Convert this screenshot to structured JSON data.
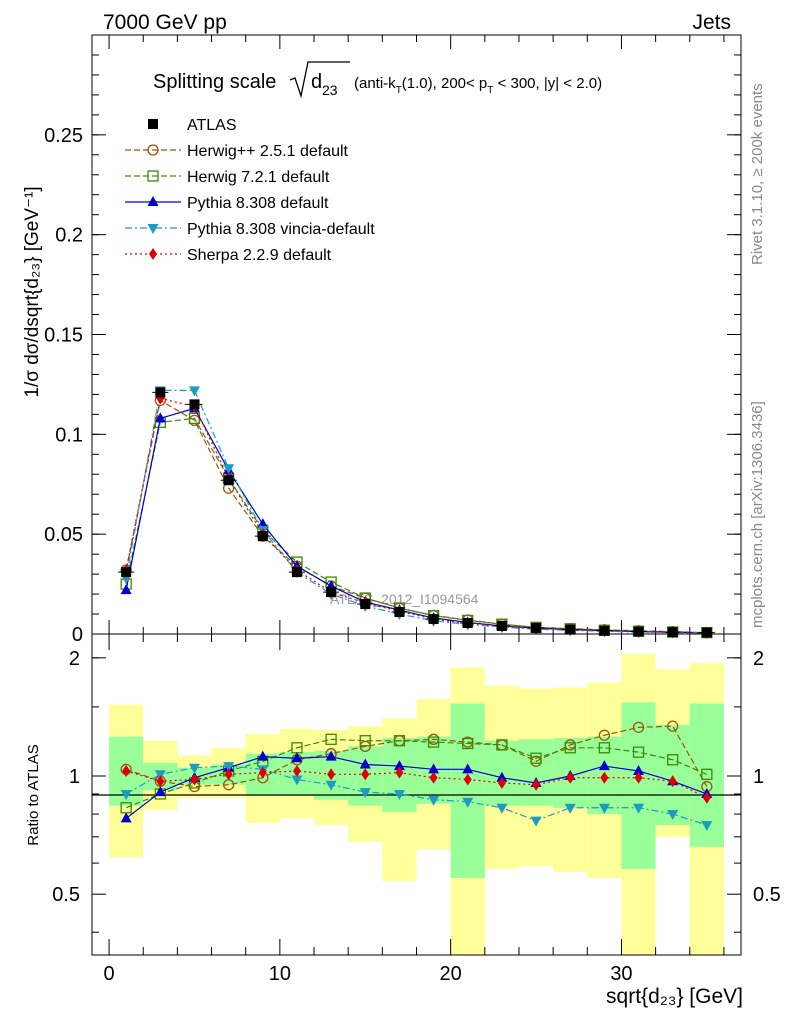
{
  "header": {
    "left": "7000 GeV pp",
    "right": "Jets"
  },
  "side_labels": {
    "rivet": "Rivet 3.1.10, ≥ 200k events",
    "mcplots": "mcplots.cern.ch [arXiv:1306.3436]"
  },
  "watermark": "ATLAS_2012_I1094564",
  "title": {
    "prefix": "Splitting scale",
    "sub": "23",
    "var": "d",
    "suffix_parts": [
      "(anti-k",
      "T",
      "(1.0), 200< p",
      "T",
      " < 300, |y| < 2.0)"
    ]
  },
  "main_ylabel": "1/σ dσ/dsqrt{d₂₃} [GeV⁻¹]",
  "ratio_ylabel": "Ratio to ATLAS",
  "xlabel": "sqrt{d₂₃} [GeV]",
  "colors": {
    "atlas": "#000000",
    "herwigpp": "#a0520a",
    "herwig7": "#3a8a0a",
    "pythia": "#0000cc",
    "vincia": "#1e9bc3",
    "sherpa": "#e00000",
    "band_yellow": "#ffff99",
    "band_green": "#99ff99"
  },
  "chart_data": [
    {
      "type": "line",
      "panel": "main",
      "title": "Splitting scale sqrt(d23) (anti-kT(1.0), 200< pT < 300, |y| < 2.0)",
      "xlabel": "sqrt{d23} [GeV]",
      "ylabel": "1/σ dσ/dsqrt{d23} [GeV^-1]",
      "xlim": [
        -1,
        37
      ],
      "ylim": [
        0,
        0.3
      ],
      "yticks": [
        0,
        0.05,
        0.1,
        0.15,
        0.2,
        0.25
      ],
      "ytick_labels": [
        "0",
        "0.05",
        "0.1",
        "0.15",
        "0.2",
        "0.25"
      ],
      "legend_position": "top-left",
      "x": [
        1,
        3,
        5,
        7,
        9,
        11,
        13,
        15,
        17,
        19,
        21,
        23,
        25,
        27,
        29,
        31,
        33,
        35
      ],
      "series": [
        {
          "key": "atlas",
          "name": "ATLAS",
          "marker": "square-filled",
          "values": [
            0.031,
            0.121,
            0.115,
            0.077,
            0.049,
            0.031,
            0.021,
            0.015,
            0.011,
            0.0075,
            0.0055,
            0.004,
            0.003,
            0.0022,
            0.0016,
            0.0012,
            0.0009,
            0.0007
          ]
        },
        {
          "key": "herwigpp",
          "name": "Herwig++ 2.5.1 default",
          "marker": "circle-open",
          "dash": "6,3",
          "values": [
            0.032,
            0.117,
            0.107,
            0.073,
            0.049,
            0.034,
            0.024,
            0.018,
            0.013,
            0.0093,
            0.007,
            0.0049,
            0.0033,
            0.0027,
            0.0021,
            0.0016,
            0.0012,
            0.00065
          ]
        },
        {
          "key": "herwig7",
          "name": "Herwig 7.2.1 default",
          "marker": "square-open",
          "dash": "6,3",
          "values": [
            0.025,
            0.106,
            0.108,
            0.078,
            0.052,
            0.036,
            0.026,
            0.018,
            0.013,
            0.0092,
            0.0068,
            0.0049,
            0.0033,
            0.0026,
            0.0019,
            0.0014,
            0.001,
            0.0007
          ]
        },
        {
          "key": "pythia",
          "name": "Pythia 8.308 default",
          "marker": "triangle-up",
          "dash": "",
          "values": [
            0.022,
            0.108,
            0.113,
            0.082,
            0.055,
            0.034,
            0.024,
            0.016,
            0.012,
            0.008,
            0.0058,
            0.004,
            0.0029,
            0.0022,
            0.0017,
            0.0012,
            0.0009,
            0.00064
          ]
        },
        {
          "key": "vincia",
          "name": "Pythia 8.308 vincia-default",
          "marker": "triangle-down",
          "dash": "7,3,2,3",
          "values": [
            0.028,
            0.122,
            0.122,
            0.083,
            0.052,
            0.031,
            0.02,
            0.014,
            0.01,
            0.0066,
            0.0048,
            0.0035,
            0.0024,
            0.0018,
            0.0014,
            0.001,
            0.00072,
            0.00053
          ]
        },
        {
          "key": "sherpa",
          "name": "Sherpa 2.2.9 default",
          "marker": "diamond",
          "dash": "2,3",
          "values": [
            0.032,
            0.118,
            0.114,
            0.078,
            0.05,
            0.032,
            0.021,
            0.0155,
            0.0114,
            0.0074,
            0.0054,
            0.0039,
            0.0029,
            0.0022,
            0.0016,
            0.0012,
            0.00085,
            0.0006
          ]
        }
      ]
    },
    {
      "type": "line",
      "panel": "ratio",
      "ylabel": "Ratio to ATLAS",
      "xlabel": "sqrt{d23} [GeV]",
      "xlim": [
        -1,
        37
      ],
      "ylim": [
        0.35,
        2.3
      ],
      "yticks": [
        0.5,
        1,
        2
      ],
      "ytick_labels": [
        "0.5",
        "1",
        "2"
      ],
      "xticks": [
        0,
        10,
        20,
        30
      ],
      "xtick_labels": [
        "0",
        "10",
        "20",
        "30"
      ],
      "bin_edges": [
        0,
        2,
        4,
        6,
        8,
        10,
        12,
        14,
        16,
        18,
        20,
        22,
        24,
        26,
        28,
        30,
        32,
        34,
        36
      ],
      "band_yellow": {
        "low": [
          0.62,
          0.82,
          0.88,
          0.88,
          0.76,
          0.78,
          0.75,
          0.68,
          0.54,
          0.65,
          0.35,
          0.58,
          0.59,
          0.57,
          0.55,
          0.35,
          0.7,
          0.35
        ],
        "high": [
          1.52,
          1.23,
          1.13,
          1.18,
          1.28,
          1.32,
          1.31,
          1.34,
          1.4,
          1.57,
          1.89,
          1.7,
          1.67,
          1.68,
          1.73,
          2.05,
          1.87,
          1.94
        ]
      },
      "band_green": {
        "low": [
          0.84,
          0.92,
          0.95,
          0.95,
          0.89,
          0.89,
          0.87,
          0.84,
          0.81,
          0.85,
          0.55,
          0.84,
          0.84,
          0.83,
          0.8,
          0.58,
          0.75,
          0.66
        ],
        "high": [
          1.26,
          1.08,
          1.05,
          1.07,
          1.14,
          1.15,
          1.16,
          1.19,
          1.25,
          1.26,
          1.53,
          1.23,
          1.24,
          1.25,
          1.26,
          1.54,
          1.35,
          1.53
        ]
      },
      "series": [
        {
          "key": "herwigpp",
          "values": [
            1.04,
            0.97,
            0.94,
            0.95,
            0.99,
            1.1,
            1.14,
            1.19,
            1.23,
            1.24,
            1.22,
            1.2,
            1.09,
            1.2,
            1.27,
            1.33,
            1.34,
            0.94
          ]
        },
        {
          "key": "herwig7",
          "values": [
            0.83,
            0.9,
            0.96,
            1.03,
            1.09,
            1.18,
            1.24,
            1.23,
            1.23,
            1.22,
            1.21,
            1.2,
            1.11,
            1.18,
            1.18,
            1.15,
            1.1,
            1.01
          ]
        },
        {
          "key": "pythia",
          "values": [
            0.78,
            0.91,
            0.99,
            1.05,
            1.12,
            1.11,
            1.12,
            1.07,
            1.06,
            1.04,
            1.04,
            0.99,
            0.96,
            1.0,
            1.06,
            1.03,
            0.97,
            0.9
          ]
        },
        {
          "key": "vincia",
          "values": [
            0.9,
            1.01,
            1.05,
            1.06,
            1.04,
            0.98,
            0.95,
            0.91,
            0.9,
            0.87,
            0.86,
            0.83,
            0.77,
            0.83,
            0.83,
            0.83,
            0.8,
            0.75
          ]
        },
        {
          "key": "sherpa",
          "values": [
            1.03,
            0.97,
            0.98,
            1.01,
            1.02,
            1.03,
            1.01,
            1.01,
            1.02,
            0.99,
            0.98,
            0.96,
            0.95,
            0.99,
            0.99,
            0.99,
            0.97,
            0.88
          ]
        }
      ]
    }
  ]
}
